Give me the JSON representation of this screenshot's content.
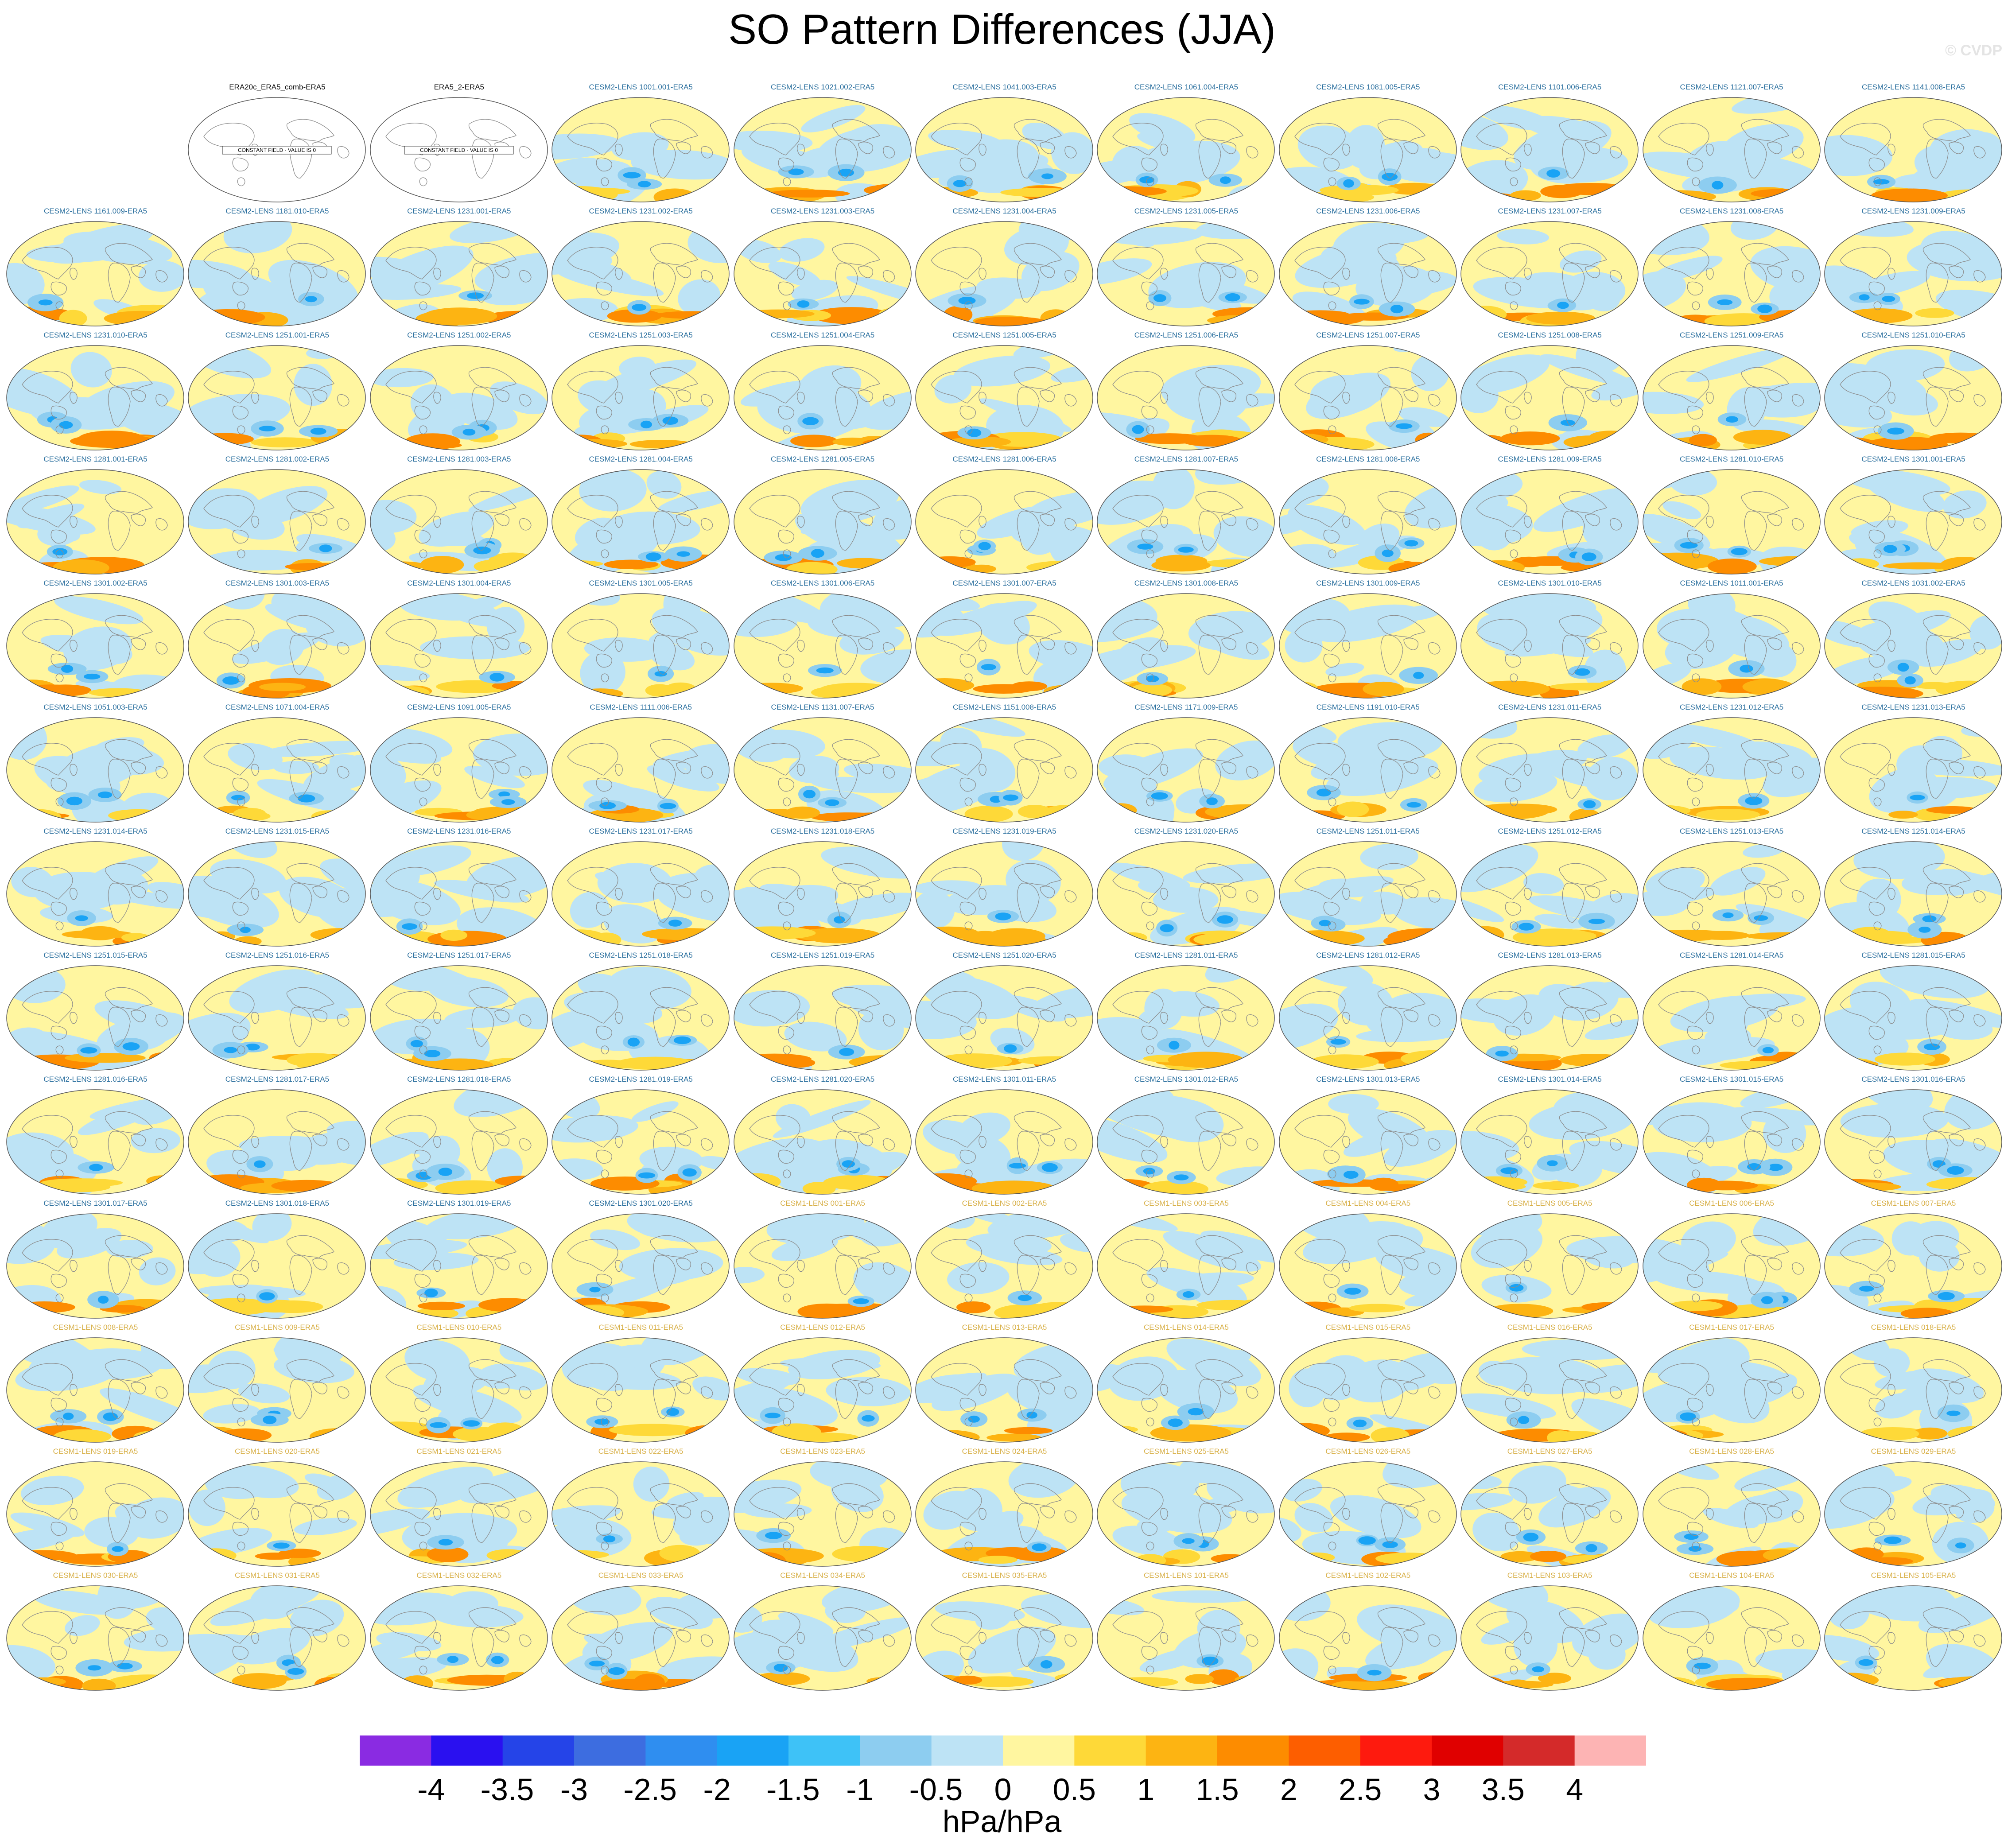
{
  "title": "SO Pattern Differences (JJA)",
  "credit": "© CVDP",
  "obs_panel_text": "CONSTANT FIELD - VALUE IS 0",
  "colors": {
    "land_outline": "#8c8c8c",
    "map_border": "#555555",
    "label_obs": "#111111",
    "label_cesm2": "#2a6f9e",
    "label_cesm1": "#d8b048"
  },
  "colorbar": {
    "units": "hPa/hPa",
    "colors": [
      "#8a2be2",
      "#2a10f0",
      "#2544e8",
      "#3d6de0",
      "#2f8ef0",
      "#19a3f5",
      "#3ec2f7",
      "#8dcdf0",
      "#bde3f5",
      "#fff6a0",
      "#fed938",
      "#fdb412",
      "#fd8c00",
      "#fd5e00",
      "#fe1a0e",
      "#e00000",
      "#d42a2a",
      "#fdb4b4"
    ],
    "ticks": [
      "-4",
      "-3.5",
      "-3",
      "-2.5",
      "-2",
      "-1.5",
      "-1",
      "-0.5",
      "0",
      "0.5",
      "1",
      "1.5",
      "2",
      "2.5",
      "3",
      "3.5",
      "4"
    ]
  },
  "panels": [
    "",
    "ERA20c_ERA5_comb-ERA5",
    "ERA5_2-ERA5",
    "CESM2-LENS 1001.001-ERA5",
    "CESM2-LENS 1021.002-ERA5",
    "CESM2-LENS 1041.003-ERA5",
    "CESM2-LENS 1061.004-ERA5",
    "CESM2-LENS 1081.005-ERA5",
    "CESM2-LENS 1101.006-ERA5",
    "CESM2-LENS 1121.007-ERA5",
    "CESM2-LENS 1141.008-ERA5",
    "CESM2-LENS 1161.009-ERA5",
    "CESM2-LENS 1181.010-ERA5",
    "CESM2-LENS 1231.001-ERA5",
    "CESM2-LENS 1231.002-ERA5",
    "CESM2-LENS 1231.003-ERA5",
    "CESM2-LENS 1231.004-ERA5",
    "CESM2-LENS 1231.005-ERA5",
    "CESM2-LENS 1231.006-ERA5",
    "CESM2-LENS 1231.007-ERA5",
    "CESM2-LENS 1231.008-ERA5",
    "CESM2-LENS 1231.009-ERA5",
    "CESM2-LENS 1231.010-ERA5",
    "CESM2-LENS 1251.001-ERA5",
    "CESM2-LENS 1251.002-ERA5",
    "CESM2-LENS 1251.003-ERA5",
    "CESM2-LENS 1251.004-ERA5",
    "CESM2-LENS 1251.005-ERA5",
    "CESM2-LENS 1251.006-ERA5",
    "CESM2-LENS 1251.007-ERA5",
    "CESM2-LENS 1251.008-ERA5",
    "CESM2-LENS 1251.009-ERA5",
    "CESM2-LENS 1251.010-ERA5",
    "CESM2-LENS 1281.001-ERA5",
    "CESM2-LENS 1281.002-ERA5",
    "CESM2-LENS 1281.003-ERA5",
    "CESM2-LENS 1281.004-ERA5",
    "CESM2-LENS 1281.005-ERA5",
    "CESM2-LENS 1281.006-ERA5",
    "CESM2-LENS 1281.007-ERA5",
    "CESM2-LENS 1281.008-ERA5",
    "CESM2-LENS 1281.009-ERA5",
    "CESM2-LENS 1281.010-ERA5",
    "CESM2-LENS 1301.001-ERA5",
    "CESM2-LENS 1301.002-ERA5",
    "CESM2-LENS 1301.003-ERA5",
    "CESM2-LENS 1301.004-ERA5",
    "CESM2-LENS 1301.005-ERA5",
    "CESM2-LENS 1301.006-ERA5",
    "CESM2-LENS 1301.007-ERA5",
    "CESM2-LENS 1301.008-ERA5",
    "CESM2-LENS 1301.009-ERA5",
    "CESM2-LENS 1301.010-ERA5",
    "CESM2-LENS 1011.001-ERA5",
    "CESM2-LENS 1031.002-ERA5",
    "CESM2-LENS 1051.003-ERA5",
    "CESM2-LENS 1071.004-ERA5",
    "CESM2-LENS 1091.005-ERA5",
    "CESM2-LENS 1111.006-ERA5",
    "CESM2-LENS 1131.007-ERA5",
    "CESM2-LENS 1151.008-ERA5",
    "CESM2-LENS 1171.009-ERA5",
    "CESM2-LENS 1191.010-ERA5",
    "CESM2-LENS 1231.011-ERA5",
    "CESM2-LENS 1231.012-ERA5",
    "CESM2-LENS 1231.013-ERA5",
    "CESM2-LENS 1231.014-ERA5",
    "CESM2-LENS 1231.015-ERA5",
    "CESM2-LENS 1231.016-ERA5",
    "CESM2-LENS 1231.017-ERA5",
    "CESM2-LENS 1231.018-ERA5",
    "CESM2-LENS 1231.019-ERA5",
    "CESM2-LENS 1231.020-ERA5",
    "CESM2-LENS 1251.011-ERA5",
    "CESM2-LENS 1251.012-ERA5",
    "CESM2-LENS 1251.013-ERA5",
    "CESM2-LENS 1251.014-ERA5",
    "CESM2-LENS 1251.015-ERA5",
    "CESM2-LENS 1251.016-ERA5",
    "CESM2-LENS 1251.017-ERA5",
    "CESM2-LENS 1251.018-ERA5",
    "CESM2-LENS 1251.019-ERA5",
    "CESM2-LENS 1251.020-ERA5",
    "CESM2-LENS 1281.011-ERA5",
    "CESM2-LENS 1281.012-ERA5",
    "CESM2-LENS 1281.013-ERA5",
    "CESM2-LENS 1281.014-ERA5",
    "CESM2-LENS 1281.015-ERA5",
    "CESM2-LENS 1281.016-ERA5",
    "CESM2-LENS 1281.017-ERA5",
    "CESM2-LENS 1281.018-ERA5",
    "CESM2-LENS 1281.019-ERA5",
    "CESM2-LENS 1281.020-ERA5",
    "CESM2-LENS 1301.011-ERA5",
    "CESM2-LENS 1301.012-ERA5",
    "CESM2-LENS 1301.013-ERA5",
    "CESM2-LENS 1301.014-ERA5",
    "CESM2-LENS 1301.015-ERA5",
    "CESM2-LENS 1301.016-ERA5",
    "CESM2-LENS 1301.017-ERA5",
    "CESM2-LENS 1301.018-ERA5",
    "CESM2-LENS 1301.019-ERA5",
    "CESM2-LENS 1301.020-ERA5",
    "CESM1-LENS 001-ERA5",
    "CESM1-LENS 002-ERA5",
    "CESM1-LENS 003-ERA5",
    "CESM1-LENS 004-ERA5",
    "CESM1-LENS 005-ERA5",
    "CESM1-LENS 006-ERA5",
    "CESM1-LENS 007-ERA5",
    "CESM1-LENS 008-ERA5",
    "CESM1-LENS 009-ERA5",
    "CESM1-LENS 010-ERA5",
    "CESM1-LENS 011-ERA5",
    "CESM1-LENS 012-ERA5",
    "CESM1-LENS 013-ERA5",
    "CESM1-LENS 014-ERA5",
    "CESM1-LENS 015-ERA5",
    "CESM1-LENS 016-ERA5",
    "CESM1-LENS 017-ERA5",
    "CESM1-LENS 018-ERA5",
    "CESM1-LENS 019-ERA5",
    "CESM1-LENS 020-ERA5",
    "CESM1-LENS 021-ERA5",
    "CESM1-LENS 022-ERA5",
    "CESM1-LENS 023-ERA5",
    "CESM1-LENS 024-ERA5",
    "CESM1-LENS 025-ERA5",
    "CESM1-LENS 026-ERA5",
    "CESM1-LENS 027-ERA5",
    "CESM1-LENS 028-ERA5",
    "CESM1-LENS 029-ERA5",
    "CESM1-LENS 030-ERA5",
    "CESM1-LENS 031-ERA5",
    "CESM1-LENS 032-ERA5",
    "CESM1-LENS 033-ERA5",
    "CESM1-LENS 034-ERA5",
    "CESM1-LENS 035-ERA5",
    "CESM1-LENS 101-ERA5",
    "CESM1-LENS 102-ERA5",
    "CESM1-LENS 103-ERA5",
    "CESM1-LENS 104-ERA5",
    "CESM1-LENS 105-ERA5"
  ]
}
